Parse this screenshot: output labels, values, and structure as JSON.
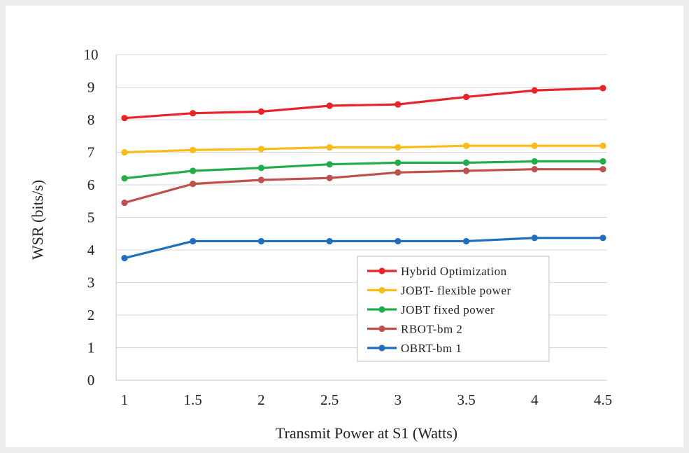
{
  "chart_data": {
    "type": "line",
    "title": "",
    "xlabel": "Transmit Power at S1 (Watts)",
    "ylabel": "WSR (bits/s)",
    "x": [
      1,
      1.5,
      2,
      2.5,
      3,
      3.5,
      4,
      4.5
    ],
    "x_tick_labels": [
      "1",
      "1.5",
      "2",
      "2.5",
      "3",
      "3.5",
      "4",
      "4.5"
    ],
    "ylim": [
      0,
      10
    ],
    "y_ticks": [
      "0",
      "1",
      "2",
      "3",
      "4",
      "5",
      "6",
      "7",
      "8",
      "9",
      "10"
    ],
    "grid": "horizontal",
    "legend_position": "bottom-right",
    "series": [
      {
        "name": "Hybrid Optimization",
        "color": "#e8242a",
        "values": [
          8.05,
          8.2,
          8.25,
          8.43,
          8.47,
          8.7,
          8.9,
          8.97
        ]
      },
      {
        "name": "JOBT- flexible power",
        "color": "#fbbb17",
        "values": [
          7.0,
          7.07,
          7.1,
          7.15,
          7.15,
          7.2,
          7.2,
          7.2
        ]
      },
      {
        "name": "JOBT fixed power",
        "color": "#22ad4a",
        "values": [
          6.2,
          6.43,
          6.52,
          6.63,
          6.68,
          6.68,
          6.72,
          6.72
        ]
      },
      {
        "name": "RBOT-bm 2",
        "color": "#c0504d",
        "values": [
          5.45,
          6.03,
          6.15,
          6.21,
          6.38,
          6.43,
          6.48,
          6.48
        ]
      },
      {
        "name": "OBRT-bm 1",
        "color": "#1f6fbf",
        "values": [
          3.75,
          4.27,
          4.27,
          4.27,
          4.27,
          4.27,
          4.37,
          4.37
        ]
      }
    ]
  }
}
